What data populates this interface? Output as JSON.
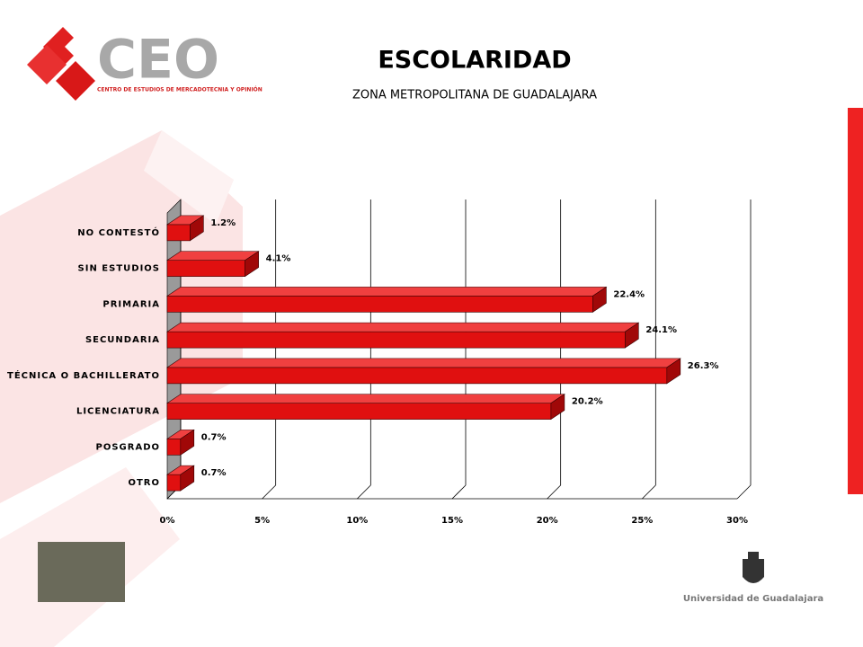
{
  "branding": {
    "logo": "CEO",
    "logo_sub": "CENTRO DE ESTUDIOS DE MERCADOTECNIA Y OPINIÓN",
    "university": "Universidad de Guadalajara"
  },
  "chart_data": {
    "type": "hbar",
    "title": "ESCOLARIDAD",
    "subtitle": "ZONA METROPOLITANA DE GUADALAJARA",
    "categories": [
      "NO CONTESTÓ",
      "SIN ESTUDIOS",
      "PRIMARIA",
      "SECUNDARIA",
      "TÉCNICA O BACHILLERATO",
      "LICENCIATURA",
      "POSGRADO",
      "OTRO"
    ],
    "values": [
      1.2,
      4.1,
      22.4,
      24.1,
      26.3,
      20.2,
      0.7,
      0.7
    ],
    "value_labels": [
      "1.2%",
      "4.1%",
      "22.4%",
      "24.1%",
      "26.3%",
      "20.2%",
      "0.7%",
      "0.7%"
    ],
    "color": "#e01010",
    "xlim": [
      0,
      30
    ],
    "xticks": [
      {
        "value": 0,
        "label": "0%"
      },
      {
        "value": 5,
        "label": "5%"
      },
      {
        "value": 10,
        "label": "10%"
      },
      {
        "value": 15,
        "label": "15%"
      },
      {
        "value": 20,
        "label": "20%"
      },
      {
        "value": 25,
        "label": "25%"
      },
      {
        "value": 30,
        "label": "30%"
      }
    ],
    "grid": true
  }
}
